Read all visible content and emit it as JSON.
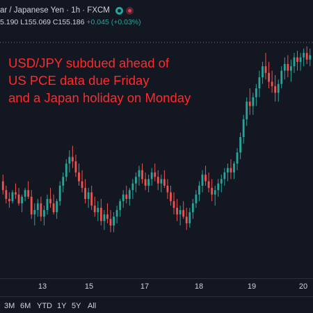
{
  "header": {
    "title": "ar / Japanese Yen · 1h · FXCM"
  },
  "ohlc": {
    "prefix": "5.190",
    "low": "L155.069",
    "close": "C155.186",
    "change": "+0.045 (+0.03%)"
  },
  "annotation": {
    "line1": "USD/JPY subdued ahead of",
    "line2": "US PCE data due Friday",
    "line3": "and a Japan holiday on Monday"
  },
  "xaxis": {
    "labels": [
      "13",
      "15",
      "17",
      "18",
      "19",
      "20"
    ]
  },
  "range_buttons": [
    "3M",
    "6M",
    "YTD",
    "1Y",
    "5Y",
    "All"
  ],
  "colors": {
    "background": "#131722",
    "up": "#26a69a",
    "down": "#ef5350",
    "annotation": "#ff2a2a"
  },
  "chart_data": {
    "type": "candlestick",
    "title": "",
    "xlabel": "",
    "ylabel": "",
    "x_ticks": [
      "13",
      "15",
      "17",
      "18",
      "19",
      "20"
    ],
    "series": [
      {
        "values": [
          [
            0.3,
            0.33,
            0.24,
            0.26
          ],
          [
            0.26,
            0.28,
            0.2,
            0.22
          ],
          [
            0.22,
            0.25,
            0.18,
            0.21
          ],
          [
            0.21,
            0.26,
            0.2,
            0.25
          ],
          [
            0.25,
            0.29,
            0.22,
            0.24
          ],
          [
            0.24,
            0.27,
            0.19,
            0.2
          ],
          [
            0.2,
            0.24,
            0.16,
            0.23
          ],
          [
            0.23,
            0.27,
            0.21,
            0.26
          ],
          [
            0.26,
            0.3,
            0.22,
            0.23
          ],
          [
            0.23,
            0.26,
            0.13,
            0.15
          ],
          [
            0.15,
            0.2,
            0.1,
            0.17
          ],
          [
            0.17,
            0.22,
            0.14,
            0.2
          ],
          [
            0.2,
            0.23,
            0.12,
            0.14
          ],
          [
            0.14,
            0.19,
            0.1,
            0.17
          ],
          [
            0.17,
            0.24,
            0.15,
            0.22
          ],
          [
            0.22,
            0.27,
            0.18,
            0.2
          ],
          [
            0.2,
            0.24,
            0.15,
            0.16
          ],
          [
            0.16,
            0.22,
            0.13,
            0.21
          ],
          [
            0.21,
            0.3,
            0.19,
            0.28
          ],
          [
            0.28,
            0.34,
            0.25,
            0.32
          ],
          [
            0.32,
            0.4,
            0.3,
            0.38
          ],
          [
            0.38,
            0.44,
            0.34,
            0.41
          ],
          [
            0.41,
            0.46,
            0.36,
            0.39
          ],
          [
            0.39,
            0.42,
            0.32,
            0.34
          ],
          [
            0.34,
            0.38,
            0.28,
            0.3
          ],
          [
            0.3,
            0.35,
            0.25,
            0.27
          ],
          [
            0.27,
            0.31,
            0.2,
            0.22
          ],
          [
            0.22,
            0.27,
            0.18,
            0.25
          ],
          [
            0.25,
            0.28,
            0.17,
            0.19
          ],
          [
            0.19,
            0.23,
            0.14,
            0.16
          ],
          [
            0.16,
            0.21,
            0.12,
            0.18
          ],
          [
            0.18,
            0.22,
            0.1,
            0.12
          ],
          [
            0.12,
            0.17,
            0.08,
            0.15
          ],
          [
            0.15,
            0.2,
            0.11,
            0.13
          ],
          [
            0.13,
            0.17,
            0.07,
            0.1
          ],
          [
            0.1,
            0.16,
            0.07,
            0.14
          ],
          [
            0.14,
            0.19,
            0.11,
            0.17
          ],
          [
            0.17,
            0.22,
            0.14,
            0.21
          ],
          [
            0.21,
            0.26,
            0.18,
            0.24
          ],
          [
            0.24,
            0.28,
            0.2,
            0.22
          ],
          [
            0.22,
            0.27,
            0.19,
            0.26
          ],
          [
            0.26,
            0.31,
            0.22,
            0.29
          ],
          [
            0.29,
            0.34,
            0.25,
            0.32
          ],
          [
            0.32,
            0.37,
            0.28,
            0.35
          ],
          [
            0.35,
            0.38,
            0.29,
            0.31
          ],
          [
            0.31,
            0.34,
            0.26,
            0.28
          ],
          [
            0.28,
            0.33,
            0.25,
            0.31
          ],
          [
            0.31,
            0.36,
            0.28,
            0.34
          ],
          [
            0.34,
            0.38,
            0.3,
            0.32
          ],
          [
            0.32,
            0.35,
            0.26,
            0.29
          ],
          [
            0.29,
            0.33,
            0.25,
            0.31
          ],
          [
            0.31,
            0.35,
            0.27,
            0.28
          ],
          [
            0.28,
            0.31,
            0.22,
            0.25
          ],
          [
            0.25,
            0.28,
            0.19,
            0.21
          ],
          [
            0.21,
            0.25,
            0.15,
            0.18
          ],
          [
            0.18,
            0.22,
            0.12,
            0.15
          ],
          [
            0.15,
            0.19,
            0.1,
            0.17
          ],
          [
            0.17,
            0.21,
            0.13,
            0.14
          ],
          [
            0.14,
            0.18,
            0.08,
            0.11
          ],
          [
            0.11,
            0.18,
            0.09,
            0.16
          ],
          [
            0.16,
            0.22,
            0.13,
            0.2
          ],
          [
            0.2,
            0.26,
            0.18,
            0.24
          ],
          [
            0.24,
            0.3,
            0.21,
            0.28
          ],
          [
            0.28,
            0.35,
            0.25,
            0.33
          ],
          [
            0.33,
            0.37,
            0.28,
            0.3
          ],
          [
            0.3,
            0.34,
            0.25,
            0.27
          ],
          [
            0.27,
            0.31,
            0.21,
            0.24
          ],
          [
            0.24,
            0.28,
            0.19,
            0.26
          ],
          [
            0.26,
            0.31,
            0.23,
            0.29
          ],
          [
            0.29,
            0.33,
            0.25,
            0.31
          ],
          [
            0.31,
            0.36,
            0.28,
            0.34
          ],
          [
            0.34,
            0.38,
            0.3,
            0.36
          ],
          [
            0.36,
            0.4,
            0.31,
            0.34
          ],
          [
            0.34,
            0.39,
            0.31,
            0.38
          ],
          [
            0.38,
            0.45,
            0.35,
            0.43
          ],
          [
            0.43,
            0.52,
            0.4,
            0.5
          ],
          [
            0.5,
            0.6,
            0.47,
            0.58
          ],
          [
            0.58,
            0.68,
            0.55,
            0.66
          ],
          [
            0.66,
            0.72,
            0.6,
            0.64
          ],
          [
            0.64,
            0.7,
            0.6,
            0.68
          ],
          [
            0.68,
            0.74,
            0.64,
            0.72
          ],
          [
            0.72,
            0.8,
            0.68,
            0.77
          ],
          [
            0.77,
            0.84,
            0.74,
            0.82
          ],
          [
            0.82,
            0.88,
            0.76,
            0.79
          ],
          [
            0.79,
            0.84,
            0.72,
            0.75
          ],
          [
            0.75,
            0.8,
            0.7,
            0.73
          ],
          [
            0.73,
            0.78,
            0.66,
            0.7
          ],
          [
            0.7,
            0.76,
            0.66,
            0.74
          ],
          [
            0.74,
            0.82,
            0.72,
            0.8
          ],
          [
            0.8,
            0.86,
            0.76,
            0.83
          ],
          [
            0.83,
            0.87,
            0.77,
            0.8
          ],
          [
            0.8,
            0.85,
            0.75,
            0.82
          ],
          [
            0.82,
            0.88,
            0.79,
            0.86
          ],
          [
            0.86,
            0.89,
            0.8,
            0.84
          ],
          [
            0.84,
            0.88,
            0.8,
            0.86
          ],
          [
            0.86,
            0.9,
            0.82,
            0.88
          ],
          [
            0.88,
            0.91,
            0.83,
            0.85
          ],
          [
            0.85,
            0.9,
            0.82,
            0.87
          ]
        ]
      }
    ]
  }
}
